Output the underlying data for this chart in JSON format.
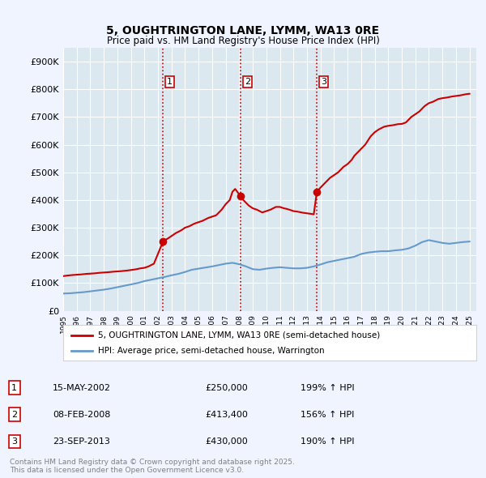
{
  "title_line1": "5, OUGHTRINGTON LANE, LYMM, WA13 0RE",
  "title_line2": "Price paid vs. HM Land Registry's House Price Index (HPI)",
  "ylabel_ticks": [
    "£0",
    "£100K",
    "£200K",
    "£300K",
    "£400K",
    "£500K",
    "£600K",
    "£700K",
    "£800K",
    "£900K"
  ],
  "ytick_values": [
    0,
    100000,
    200000,
    300000,
    400000,
    500000,
    600000,
    700000,
    800000,
    900000
  ],
  "ylim": [
    0,
    950000
  ],
  "xlim_start": 1995.0,
  "xlim_end": 2025.5,
  "sale_dates": [
    2002.37,
    2008.1,
    2013.73
  ],
  "sale_prices": [
    250000,
    413400,
    430000
  ],
  "sale_labels": [
    "1",
    "2",
    "3"
  ],
  "vline_color": "#cc0000",
  "vline_style": ":",
  "sale_marker_color": "#cc0000",
  "red_line_color": "#cc0000",
  "blue_line_color": "#6699cc",
  "background_color": "#f0f4ff",
  "plot_bg_color": "#dce8f0",
  "grid_color": "#ffffff",
  "legend_label_red": "5, OUGHTRINGTON LANE, LYMM, WA13 0RE (semi-detached house)",
  "legend_label_blue": "HPI: Average price, semi-detached house, Warrington",
  "table_entries": [
    {
      "num": "1",
      "date": "15-MAY-2002",
      "price": "£250,000",
      "hpi": "199% ↑ HPI"
    },
    {
      "num": "2",
      "date": "08-FEB-2008",
      "price": "£413,400",
      "hpi": "156% ↑ HPI"
    },
    {
      "num": "3",
      "date": "23-SEP-2013",
      "price": "£430,000",
      "hpi": "190% ↑ HPI"
    }
  ],
  "footer_text": "Contains HM Land Registry data © Crown copyright and database right 2025.\nThis data is licensed under the Open Government Licence v3.0.",
  "hpi_years": [
    1995,
    1995.5,
    1996,
    1996.5,
    1997,
    1997.5,
    1998,
    1998.5,
    1999,
    1999.5,
    2000,
    2000.5,
    2001,
    2001.5,
    2002,
    2002.5,
    2003,
    2003.5,
    2004,
    2004.5,
    2005,
    2005.5,
    2006,
    2006.5,
    2007,
    2007.5,
    2008,
    2008.5,
    2009,
    2009.5,
    2010,
    2010.5,
    2011,
    2011.5,
    2012,
    2012.5,
    2013,
    2013.5,
    2014,
    2014.5,
    2015,
    2015.5,
    2016,
    2016.5,
    2017,
    2017.5,
    2018,
    2018.5,
    2019,
    2019.5,
    2020,
    2020.5,
    2021,
    2021.5,
    2022,
    2022.5,
    2023,
    2023.5,
    2024,
    2024.5,
    2025
  ],
  "hpi_values": [
    62000,
    63000,
    65000,
    67000,
    70000,
    73000,
    76000,
    80000,
    85000,
    90000,
    95000,
    100000,
    107000,
    112000,
    117000,
    122000,
    128000,
    133000,
    140000,
    148000,
    152000,
    156000,
    160000,
    165000,
    170000,
    173000,
    168000,
    160000,
    150000,
    148000,
    152000,
    155000,
    157000,
    155000,
    153000,
    153000,
    155000,
    160000,
    167000,
    175000,
    180000,
    185000,
    190000,
    195000,
    205000,
    210000,
    213000,
    215000,
    215000,
    218000,
    220000,
    225000,
    235000,
    248000,
    255000,
    250000,
    245000,
    242000,
    245000,
    248000,
    250000
  ],
  "price_years": [
    1995,
    1995.3,
    1995.5,
    1995.7,
    1996,
    1996.3,
    1996.5,
    1996.7,
    1997,
    1997.3,
    1997.5,
    1997.7,
    1998,
    1998.3,
    1998.5,
    1998.7,
    1999,
    1999.3,
    1999.5,
    1999.7,
    2000,
    2000.3,
    2000.5,
    2000.7,
    2001,
    2001.3,
    2001.5,
    2001.7,
    2002.37,
    2002.5,
    2002.7,
    2003,
    2003.3,
    2003.5,
    2003.7,
    2004,
    2004.3,
    2004.5,
    2004.7,
    2005,
    2005.3,
    2005.5,
    2005.7,
    2006,
    2006.3,
    2006.5,
    2006.7,
    2007,
    2007.3,
    2007.5,
    2007.7,
    2008.1,
    2008.3,
    2008.5,
    2008.7,
    2009,
    2009.3,
    2009.5,
    2009.7,
    2010,
    2010.3,
    2010.5,
    2010.7,
    2011,
    2011.3,
    2011.5,
    2011.7,
    2012,
    2012.3,
    2012.5,
    2012.7,
    2013,
    2013.3,
    2013.5,
    2013.73,
    2014,
    2014.3,
    2014.5,
    2014.7,
    2015,
    2015.3,
    2015.5,
    2015.7,
    2016,
    2016.3,
    2016.5,
    2016.7,
    2017,
    2017.3,
    2017.5,
    2017.7,
    2018,
    2018.3,
    2018.5,
    2018.7,
    2019,
    2019.3,
    2019.5,
    2019.7,
    2020,
    2020.3,
    2020.5,
    2020.7,
    2021,
    2021.3,
    2021.5,
    2021.7,
    2022,
    2022.3,
    2022.5,
    2022.7,
    2023,
    2023.3,
    2023.5,
    2023.7,
    2024,
    2024.3,
    2024.5,
    2024.7,
    2025
  ],
  "price_values": [
    125000,
    127000,
    128000,
    129000,
    130000,
    131000,
    132000,
    133000,
    134000,
    135000,
    136000,
    137000,
    138000,
    139000,
    140000,
    141000,
    142000,
    143000,
    144000,
    145000,
    147000,
    149000,
    151000,
    153000,
    155000,
    160000,
    165000,
    170000,
    250000,
    255000,
    260000,
    270000,
    280000,
    285000,
    290000,
    300000,
    305000,
    310000,
    315000,
    320000,
    325000,
    330000,
    335000,
    340000,
    345000,
    355000,
    365000,
    385000,
    400000,
    430000,
    440000,
    413400,
    400000,
    390000,
    380000,
    370000,
    365000,
    360000,
    355000,
    360000,
    365000,
    370000,
    375000,
    375000,
    370000,
    368000,
    365000,
    360000,
    358000,
    356000,
    354000,
    352000,
    350000,
    348000,
    430000,
    445000,
    460000,
    470000,
    480000,
    490000,
    500000,
    510000,
    520000,
    530000,
    545000,
    560000,
    570000,
    585000,
    600000,
    615000,
    630000,
    645000,
    655000,
    660000,
    665000,
    668000,
    670000,
    672000,
    674000,
    675000,
    680000,
    690000,
    700000,
    710000,
    720000,
    730000,
    740000,
    750000,
    755000,
    760000,
    765000,
    768000,
    770000,
    772000,
    774000,
    776000,
    778000,
    780000,
    782000,
    784000
  ]
}
